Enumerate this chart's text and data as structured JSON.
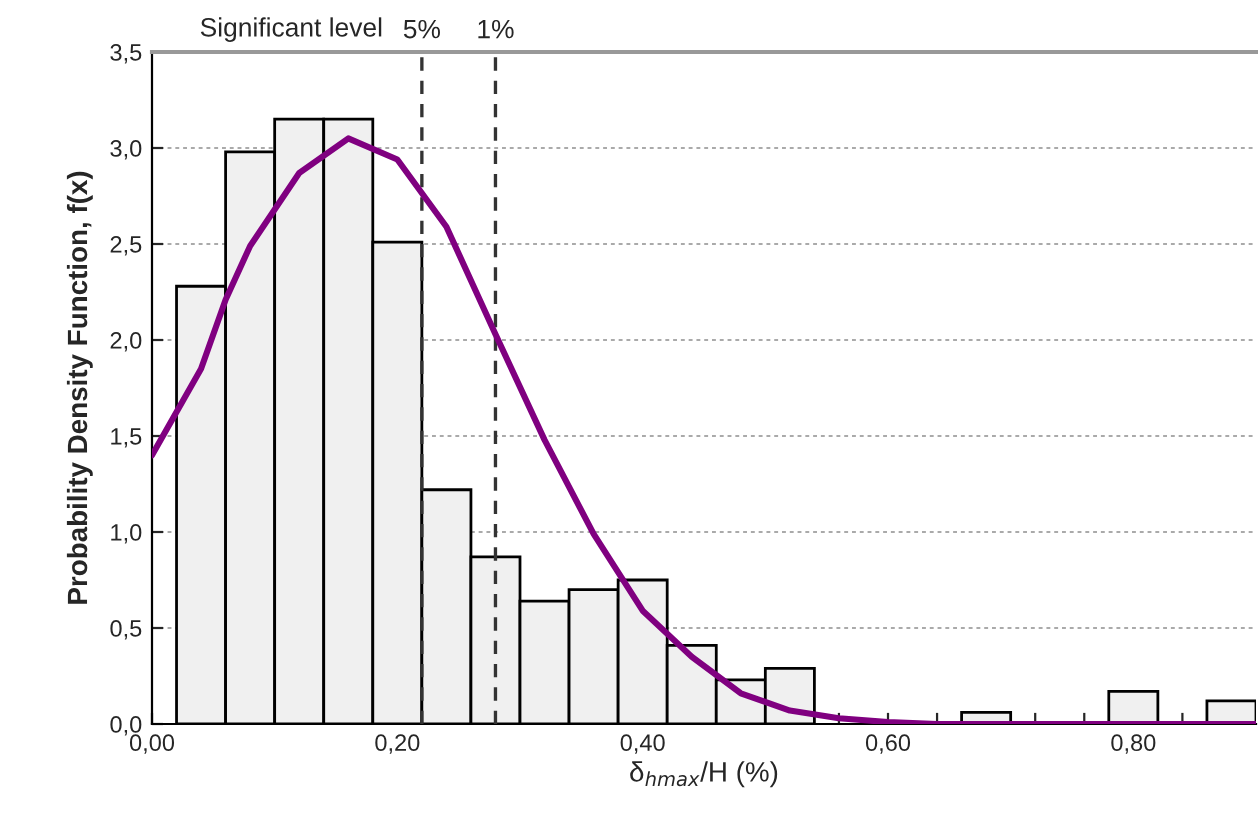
{
  "chart_data": {
    "type": "histogram",
    "xlabel": "δ$_{hmax}$/H (%)",
    "ylabel": "Probability Density Function, f(x)",
    "bins": [
      0.02,
      0.06,
      0.1,
      0.14,
      0.18,
      0.22,
      0.26,
      0.3,
      0.34,
      0.38,
      0.42,
      0.46,
      0.5,
      0.54,
      0.58,
      0.62,
      0.66,
      0.7,
      0.74,
      0.78,
      0.82,
      0.86,
      0.9
    ],
    "values": [
      2.28,
      2.98,
      3.15,
      3.15,
      2.51,
      1.22,
      0.87,
      0.64,
      0.7,
      0.75,
      0.41,
      0.23,
      0.29,
      0,
      0,
      0,
      0.06,
      0,
      0,
      0.17,
      0,
      0.12
    ],
    "color": "#f0f0f0",
    "series": [
      {
        "type": "line",
        "color": "#800080",
        "x": [
          0,
          0.04,
          0.06,
          0.08,
          0.12,
          0.16,
          0.2,
          0.24,
          0.28,
          0.32,
          0.36,
          0.4,
          0.44,
          0.48,
          0.52,
          0.56,
          0.6,
          0.64,
          0.7,
          0.8,
          0.9
        ],
        "values": [
          1.4,
          1.85,
          2.21,
          2.49,
          2.87,
          3.05,
          2.94,
          2.59,
          2.03,
          1.48,
          0.99,
          0.59,
          0.35,
          0.16,
          0.07,
          0.03,
          0.01,
          0,
          0,
          0,
          0
        ]
      }
    ],
    "xlim": [
      0,
      0.9
    ],
    "xticks": [
      {
        "value": 0,
        "label": "0,00"
      },
      {
        "value": 0.04,
        "label": null
      },
      {
        "value": 0.08,
        "label": null
      },
      {
        "value": 0.12,
        "label": null
      },
      {
        "value": 0.16,
        "label": null
      },
      {
        "value": 0.2,
        "label": "0,20"
      },
      {
        "value": 0.24,
        "label": null
      },
      {
        "value": 0.28,
        "label": null
      },
      {
        "value": 0.32,
        "label": null
      },
      {
        "value": 0.36,
        "label": null
      },
      {
        "value": 0.4,
        "label": "0,40"
      },
      {
        "value": 0.44,
        "label": null
      },
      {
        "value": 0.48,
        "label": null
      },
      {
        "value": 0.52,
        "label": null
      },
      {
        "value": 0.56,
        "label": null
      },
      {
        "value": 0.6,
        "label": "0,60"
      },
      {
        "value": 0.64,
        "label": null
      },
      {
        "value": 0.68,
        "label": null
      },
      {
        "value": 0.72,
        "label": null
      },
      {
        "value": 0.76,
        "label": null
      },
      {
        "value": 0.8,
        "label": "0,80"
      },
      {
        "value": 0.84,
        "label": null
      },
      {
        "value": 0.88,
        "label": null
      }
    ],
    "ylim": [
      0,
      3.5
    ],
    "yticks": [
      {
        "value": 0,
        "label": "0,0"
      },
      {
        "value": 0.5,
        "label": "0,5"
      },
      {
        "value": 1,
        "label": "1,0"
      },
      {
        "value": 1.5,
        "label": "1,5"
      },
      {
        "value": 2,
        "label": "2,0"
      },
      {
        "value": 2.5,
        "label": "2,5"
      },
      {
        "value": 3,
        "label": "3,0"
      },
      {
        "value": 3.5,
        "label": "3,5"
      }
    ],
    "grid": "y",
    "ref_lines": [
      {
        "axis": "x",
        "value": 0.22,
        "line_style": "dashed",
        "color": "#333333"
      },
      {
        "axis": "x",
        "value": 0.28,
        "line_style": "dashed",
        "color": "#333333"
      }
    ],
    "annotations": [
      "Significant level",
      {
        "text": "5%",
        "x": 0.22,
        "y": 3.5
      },
      {
        "text": "1%",
        "x": 0.28,
        "y": 3.5
      }
    ]
  }
}
